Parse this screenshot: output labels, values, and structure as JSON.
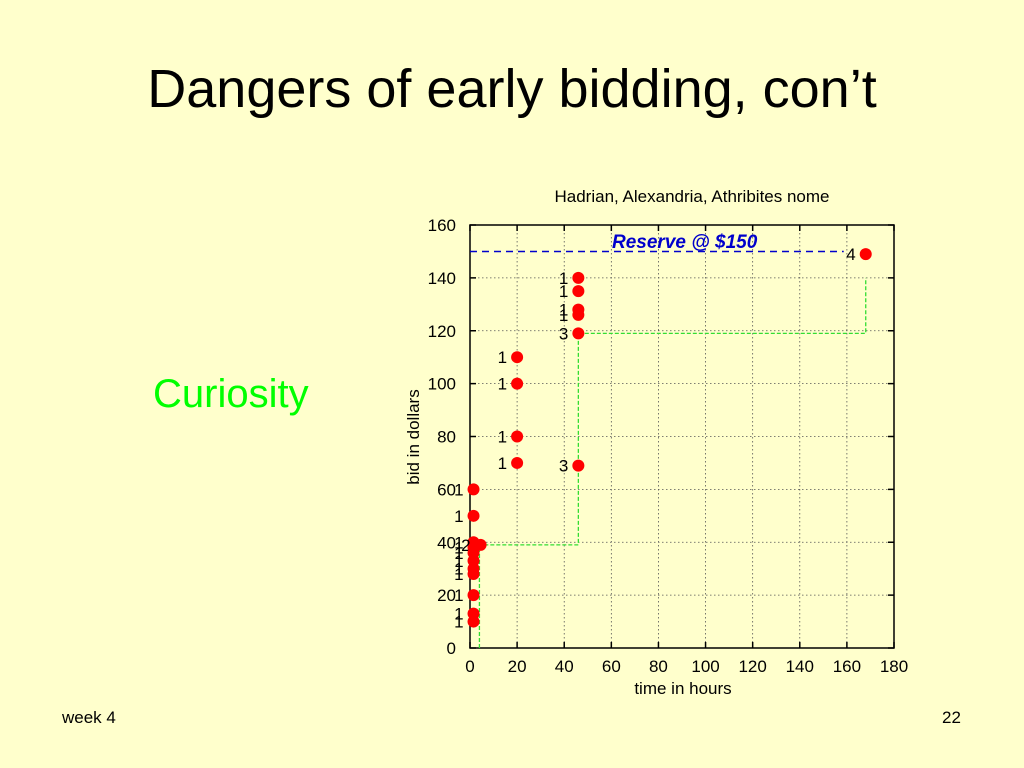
{
  "slide": {
    "title": "Dangers of early bidding, con’t",
    "side_label": "Curiosity",
    "footer_left": "week 4",
    "page_number": "22"
  },
  "colors": {
    "background": "#ffffcc",
    "side_label": "#00ff00",
    "points": "#ff0000",
    "step_line": "#33dd33",
    "reserve_line": "#0000cc"
  },
  "chart_data": {
    "type": "scatter",
    "title": "Hadrian, Alexandria, Athribites nome",
    "xlabel": "time in hours",
    "ylabel": "bid in dollars",
    "xlim": [
      0,
      180
    ],
    "ylim": [
      0,
      160
    ],
    "x_ticks": [
      0,
      20,
      40,
      60,
      80,
      100,
      120,
      140,
      160,
      180
    ],
    "y_ticks": [
      0,
      20,
      40,
      60,
      80,
      100,
      120,
      140,
      160
    ],
    "grid": true,
    "reserve": {
      "value": 150,
      "label": "Reserve @ $150"
    },
    "points": [
      {
        "x": 1.5,
        "y": 60,
        "label": "1"
      },
      {
        "x": 1.5,
        "y": 50,
        "label": "1"
      },
      {
        "x": 1.5,
        "y": 40,
        "label": "1"
      },
      {
        "x": 1.5,
        "y": 38,
        "label": "1"
      },
      {
        "x": 4.5,
        "y": 39,
        "label": "2"
      },
      {
        "x": 1.5,
        "y": 36,
        "label": "1"
      },
      {
        "x": 1.5,
        "y": 33,
        "label": "1"
      },
      {
        "x": 1.5,
        "y": 30,
        "label": "1"
      },
      {
        "x": 1.5,
        "y": 28,
        "label": "1"
      },
      {
        "x": 1.5,
        "y": 20,
        "label": "1"
      },
      {
        "x": 1.5,
        "y": 13,
        "label": "1"
      },
      {
        "x": 1.5,
        "y": 10,
        "label": "1"
      },
      {
        "x": 20,
        "y": 110,
        "label": "1"
      },
      {
        "x": 20,
        "y": 100,
        "label": "1"
      },
      {
        "x": 20,
        "y": 80,
        "label": "1"
      },
      {
        "x": 20,
        "y": 70,
        "label": "1"
      },
      {
        "x": 46,
        "y": 140,
        "label": "1"
      },
      {
        "x": 46,
        "y": 135,
        "label": "1"
      },
      {
        "x": 46,
        "y": 128,
        "label": "1"
      },
      {
        "x": 46,
        "y": 126,
        "label": "1"
      },
      {
        "x": 46,
        "y": 119,
        "label": "3"
      },
      {
        "x": 46,
        "y": 69,
        "label": "3"
      },
      {
        "x": 168,
        "y": 149,
        "label": "4"
      }
    ],
    "step_line": {
      "x": [
        4,
        4,
        46,
        46,
        168,
        168
      ],
      "y": [
        0,
        39,
        39,
        119,
        119,
        140
      ]
    }
  }
}
